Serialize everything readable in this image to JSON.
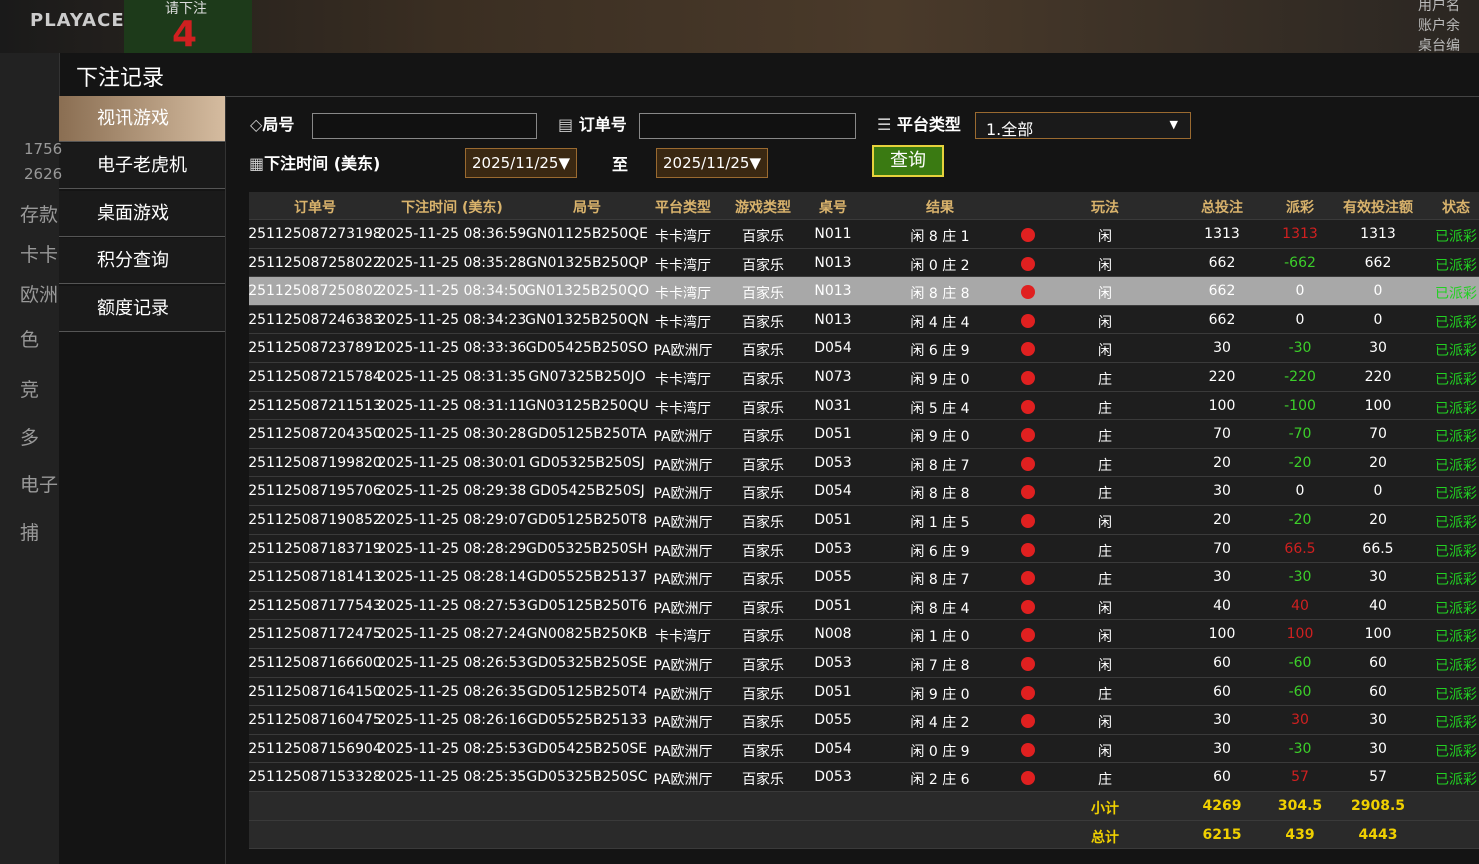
{
  "background": {
    "brand": "PLAYACE",
    "prompt": "请下注",
    "countdown": "4",
    "side": [
      "1756",
      "2626",
      "存款",
      "卡卡",
      "欧洲",
      "色",
      "竞",
      "多",
      "电子",
      "捕"
    ],
    "top_right": [
      "用户名",
      "账户余",
      "桌台编"
    ]
  },
  "modal": {
    "title": "下注记录",
    "nav": [
      "视讯游戏",
      "电子老虎机",
      "桌面游戏",
      "积分查询",
      "额度记录"
    ],
    "filters": {
      "round_label": "局号",
      "order_label": "订单号",
      "platform_label": "平台类型",
      "platform_value": "1.全部",
      "time_label": "下注时间 (美东)",
      "date_from": "2025/11/25▼",
      "to": "至",
      "date_to": "2025/11/25▼",
      "query": "查询"
    },
    "table": {
      "headers": [
        "订单号",
        "下注时间 (美东)",
        "局号",
        "平台类型",
        "游戏类型",
        "桌号",
        "结果",
        "玩法",
        "总投注",
        "派彩",
        "有效投注额",
        "状态"
      ],
      "highlighted_row": 2,
      "rows": [
        [
          "251125087273198",
          "2025-11-25 08:36:59",
          "GN01125B250QE",
          "卡卡湾厅",
          "百家乐",
          "N011",
          "闲 8 庄 1",
          "闲",
          "1313",
          "1313",
          "1313",
          "已派彩"
        ],
        [
          "251125087258022",
          "2025-11-25 08:35:28",
          "GN01325B250QP",
          "卡卡湾厅",
          "百家乐",
          "N013",
          "闲 0 庄 2",
          "闲",
          "662",
          "-662",
          "662",
          "已派彩"
        ],
        [
          "251125087250802",
          "2025-11-25 08:34:50",
          "GN01325B250QO",
          "卡卡湾厅",
          "百家乐",
          "N013",
          "闲 8 庄 8",
          "闲",
          "662",
          "0",
          "0",
          "已派彩"
        ],
        [
          "251125087246383",
          "2025-11-25 08:34:23",
          "GN01325B250QN",
          "卡卡湾厅",
          "百家乐",
          "N013",
          "闲 4 庄 4",
          "闲",
          "662",
          "0",
          "0",
          "已派彩"
        ],
        [
          "251125087237891",
          "2025-11-25 08:33:36",
          "GD05425B250SO",
          "PA欧洲厅",
          "百家乐",
          "D054",
          "闲 6 庄 9",
          "闲",
          "30",
          "-30",
          "30",
          "已派彩"
        ],
        [
          "251125087215784",
          "2025-11-25 08:31:35",
          "GN07325B250JO",
          "卡卡湾厅",
          "百家乐",
          "N073",
          "闲 9 庄 0",
          "庄",
          "220",
          "-220",
          "220",
          "已派彩"
        ],
        [
          "251125087211513",
          "2025-11-25 08:31:11",
          "GN03125B250QU",
          "卡卡湾厅",
          "百家乐",
          "N031",
          "闲 5 庄 4",
          "庄",
          "100",
          "-100",
          "100",
          "已派彩"
        ],
        [
          "251125087204350",
          "2025-11-25 08:30:28",
          "GD05125B250TA",
          "PA欧洲厅",
          "百家乐",
          "D051",
          "闲 9 庄 0",
          "庄",
          "70",
          "-70",
          "70",
          "已派彩"
        ],
        [
          "251125087199820",
          "2025-11-25 08:30:01",
          "GD05325B250SJ",
          "PA欧洲厅",
          "百家乐",
          "D053",
          "闲 8 庄 7",
          "庄",
          "20",
          "-20",
          "20",
          "已派彩"
        ],
        [
          "251125087195706",
          "2025-11-25 08:29:38",
          "GD05425B250SJ",
          "PA欧洲厅",
          "百家乐",
          "D054",
          "闲 8 庄 8",
          "庄",
          "30",
          "0",
          "0",
          "已派彩"
        ],
        [
          "251125087190852",
          "2025-11-25 08:29:07",
          "GD05125B250T8",
          "PA欧洲厅",
          "百家乐",
          "D051",
          "闲 1 庄 5",
          "闲",
          "20",
          "-20",
          "20",
          "已派彩"
        ],
        [
          "251125087183719",
          "2025-11-25 08:28:29",
          "GD05325B250SH",
          "PA欧洲厅",
          "百家乐",
          "D053",
          "闲 6 庄 9",
          "庄",
          "70",
          "66.5",
          "66.5",
          "已派彩"
        ],
        [
          "251125087181413",
          "2025-11-25 08:28:14",
          "GD05525B25137",
          "PA欧洲厅",
          "百家乐",
          "D055",
          "闲 8 庄 7",
          "庄",
          "30",
          "-30",
          "30",
          "已派彩"
        ],
        [
          "251125087177543",
          "2025-11-25 08:27:53",
          "GD05125B250T6",
          "PA欧洲厅",
          "百家乐",
          "D051",
          "闲 8 庄 4",
          "闲",
          "40",
          "40",
          "40",
          "已派彩"
        ],
        [
          "251125087172475",
          "2025-11-25 08:27:24",
          "GN00825B250KB",
          "卡卡湾厅",
          "百家乐",
          "N008",
          "闲 1 庄 0",
          "闲",
          "100",
          "100",
          "100",
          "已派彩"
        ],
        [
          "251125087166600",
          "2025-11-25 08:26:53",
          "GD05325B250SE",
          "PA欧洲厅",
          "百家乐",
          "D053",
          "闲 7 庄 8",
          "闲",
          "60",
          "-60",
          "60",
          "已派彩"
        ],
        [
          "251125087164150",
          "2025-11-25 08:26:35",
          "GD05125B250T4",
          "PA欧洲厅",
          "百家乐",
          "D051",
          "闲 9 庄 0",
          "庄",
          "60",
          "-60",
          "60",
          "已派彩"
        ],
        [
          "251125087160475",
          "2025-11-25 08:26:16",
          "GD05525B25133",
          "PA欧洲厅",
          "百家乐",
          "D055",
          "闲 4 庄 2",
          "闲",
          "30",
          "30",
          "30",
          "已派彩"
        ],
        [
          "251125087156904",
          "2025-11-25 08:25:53",
          "GD05425B250SE",
          "PA欧洲厅",
          "百家乐",
          "D054",
          "闲 0 庄 9",
          "闲",
          "30",
          "-30",
          "30",
          "已派彩"
        ],
        [
          "251125087153328",
          "2025-11-25 08:25:35",
          "GD05325B250SC",
          "PA欧洲厅",
          "百家乐",
          "D053",
          "闲 2 庄 6",
          "庄",
          "60",
          "57",
          "57",
          "已派彩"
        ]
      ],
      "summary": [
        {
          "label": "小计",
          "values": [
            "4269",
            "304.5",
            "2908.5"
          ]
        },
        {
          "label": "总计",
          "values": [
            "6215",
            "439",
            "4443"
          ]
        }
      ]
    }
  }
}
